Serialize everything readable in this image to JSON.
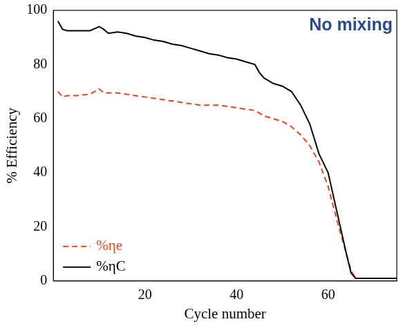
{
  "chart_data": {
    "type": "line",
    "annotation": "No mixing",
    "x_label": "Cycle number",
    "y_label": "% Efficiency",
    "x": [
      1,
      2,
      3,
      5,
      8,
      10,
      11,
      12,
      14,
      16,
      18,
      20,
      22,
      24,
      26,
      28,
      30,
      32,
      34,
      36,
      38,
      40,
      42,
      44,
      45,
      46,
      48,
      50,
      52,
      54,
      56,
      58,
      60,
      62,
      64,
      65,
      66,
      68,
      70,
      75
    ],
    "series": [
      {
        "name": "%ηe",
        "color": "#e8431c",
        "line_style": "dashed",
        "values": [
          70,
          68,
          68.5,
          68.5,
          69,
          71,
          69.5,
          69.5,
          69.5,
          69,
          68.5,
          68,
          67.5,
          67,
          66.5,
          66,
          65.5,
          65,
          65,
          65,
          64.5,
          64,
          63.5,
          63,
          62,
          61,
          60,
          59,
          57,
          54,
          50,
          44,
          35,
          22,
          10,
          4,
          1,
          1,
          1,
          1
        ]
      },
      {
        "name": "%ηC",
        "color": "#000000",
        "line_style": "solid",
        "values": [
          96,
          93,
          92.5,
          92.5,
          92.5,
          94,
          93,
          91.5,
          92,
          91.5,
          90.5,
          90,
          89,
          88.5,
          87.5,
          87,
          86,
          85,
          84,
          83.5,
          82.5,
          82,
          81,
          80,
          77,
          75,
          73,
          72,
          70,
          65,
          58,
          47,
          40,
          25,
          10,
          3,
          1,
          1,
          1,
          1
        ]
      }
    ],
    "xlim": [
      0,
      75
    ],
    "xticks": [
      20,
      40,
      60
    ],
    "ylim": [
      0,
      100
    ],
    "yticks": [
      0,
      20,
      40,
      60,
      80,
      100
    ],
    "grid": false,
    "legend": "lower left"
  }
}
